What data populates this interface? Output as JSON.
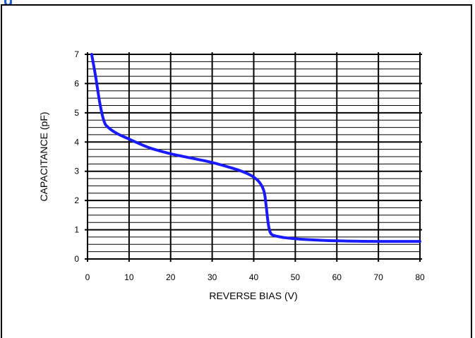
{
  "header_fragment": {
    "text": "g"
  },
  "colors": {
    "curve": "#1a1aff",
    "grid": "#000000",
    "fragment": "#1f5fd6"
  },
  "chart_data": {
    "type": "line",
    "title": "",
    "xlabel": "REVERSE BIAS (V)",
    "ylabel": "CAPACITANCE (pF)",
    "xlim": [
      0,
      80
    ],
    "ylim": [
      0,
      7
    ],
    "x_ticks": [
      0,
      10,
      20,
      30,
      40,
      50,
      60,
      70,
      80
    ],
    "y_ticks": [
      0,
      1,
      2,
      3,
      4,
      5,
      6,
      7
    ],
    "grid": true,
    "minor_y_per_major": 4,
    "series": [
      {
        "name": "",
        "x": [
          1,
          2,
          3,
          4,
          5,
          7,
          10,
          15,
          20,
          25,
          30,
          35,
          38,
          40,
          41.5,
          42.5,
          43,
          43.5,
          44,
          45,
          48,
          52,
          60,
          70,
          80
        ],
        "y": [
          7.0,
          6.2,
          5.3,
          4.7,
          4.5,
          4.3,
          4.1,
          3.8,
          3.6,
          3.45,
          3.3,
          3.1,
          2.95,
          2.8,
          2.6,
          2.3,
          1.8,
          1.2,
          0.9,
          0.8,
          0.72,
          0.67,
          0.62,
          0.6,
          0.6
        ]
      }
    ]
  }
}
